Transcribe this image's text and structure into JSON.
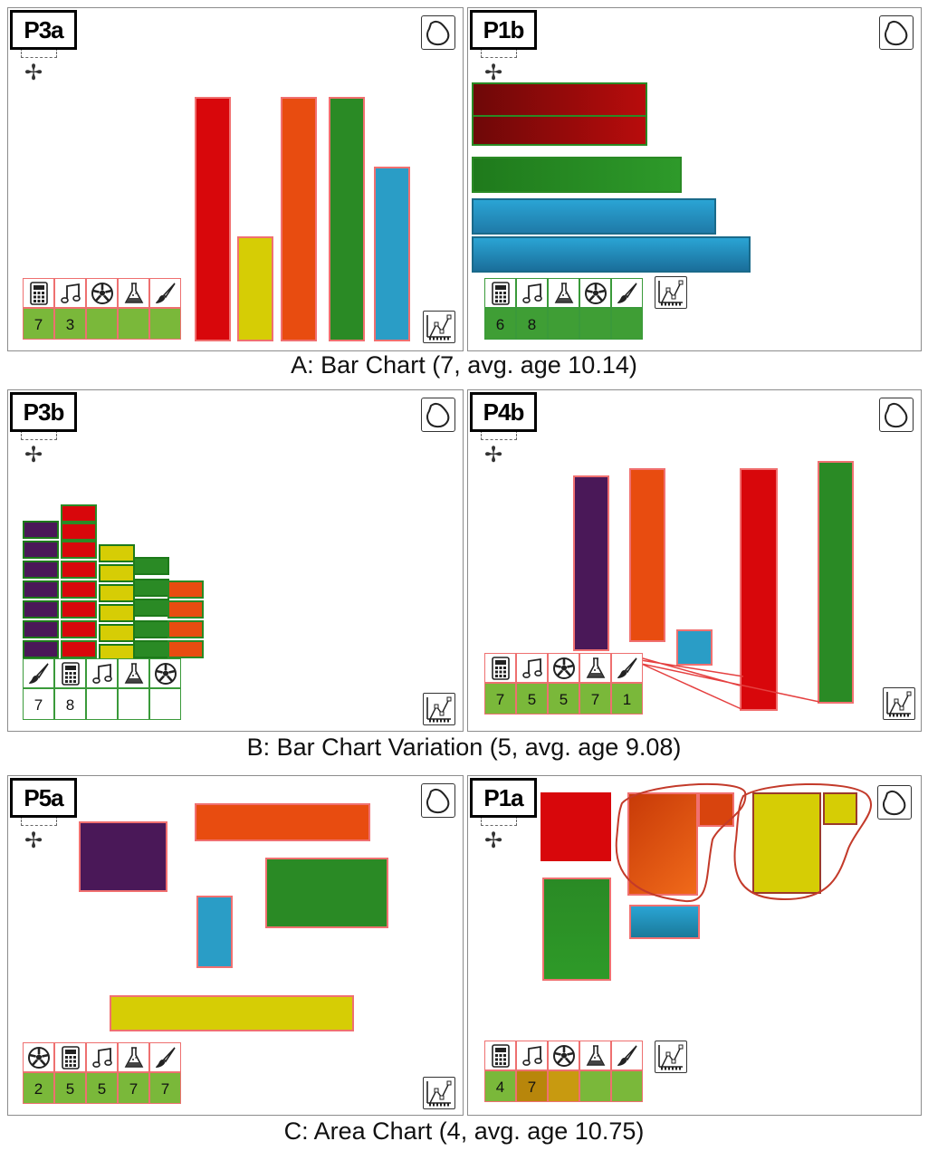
{
  "captions": {
    "a": "A: Bar Chart (7, avg. age 10.14)",
    "b": "B: Bar Chart Variation (5, avg. age 9.08)",
    "c": "C: Area Chart (4, avg. age 10.75)"
  },
  "icons": {
    "shape_button": "blob-shape-icon",
    "chart_button": "chart-type-icon",
    "move": "move-icon",
    "move_glyph": "✢",
    "calculator": "calculator-icon",
    "music": "music-note-icon",
    "soccer": "soccer-ball-icon",
    "science": "flask-icon",
    "art": "paintbrush-icon"
  },
  "colors": {
    "red": "#d8070b",
    "yellow": "#d6cd05",
    "orange": "#e84c10",
    "green": "#2a8a25",
    "blue": "#2a9dc6",
    "purple": "#4a1858",
    "darkred": "#9a0a0a"
  },
  "panels": {
    "p3a": {
      "label": "P3a",
      "legend_icons": [
        "calculator",
        "music",
        "soccer",
        "science",
        "art"
      ],
      "legend_counts": [
        "7",
        "3",
        "",
        "",
        ""
      ]
    },
    "p1b": {
      "label": "P1b",
      "legend_icons": [
        "calculator",
        "music",
        "science",
        "soccer",
        "art"
      ],
      "legend_counts": [
        "6",
        "8",
        "",
        "",
        ""
      ]
    },
    "p3b": {
      "label": "P3b",
      "legend_icons": [
        "art",
        "calculator",
        "music",
        "science",
        "soccer"
      ],
      "legend_counts": [
        "7",
        "8",
        "",
        "",
        ""
      ]
    },
    "p4b": {
      "label": "P4b",
      "legend_icons": [
        "calculator",
        "music",
        "soccer",
        "science",
        "art"
      ],
      "legend_counts": [
        "7",
        "5",
        "5",
        "7",
        "1"
      ]
    },
    "p5a": {
      "label": "P5a",
      "legend_icons": [
        "soccer",
        "calculator",
        "music",
        "science",
        "art"
      ],
      "legend_counts": [
        "2",
        "5",
        "5",
        "7",
        "7"
      ]
    },
    "p1a": {
      "label": "P1a",
      "legend_icons": [
        "calculator",
        "music",
        "soccer",
        "science",
        "art"
      ],
      "legend_counts": [
        "4",
        "7",
        "",
        "",
        ""
      ]
    }
  }
}
